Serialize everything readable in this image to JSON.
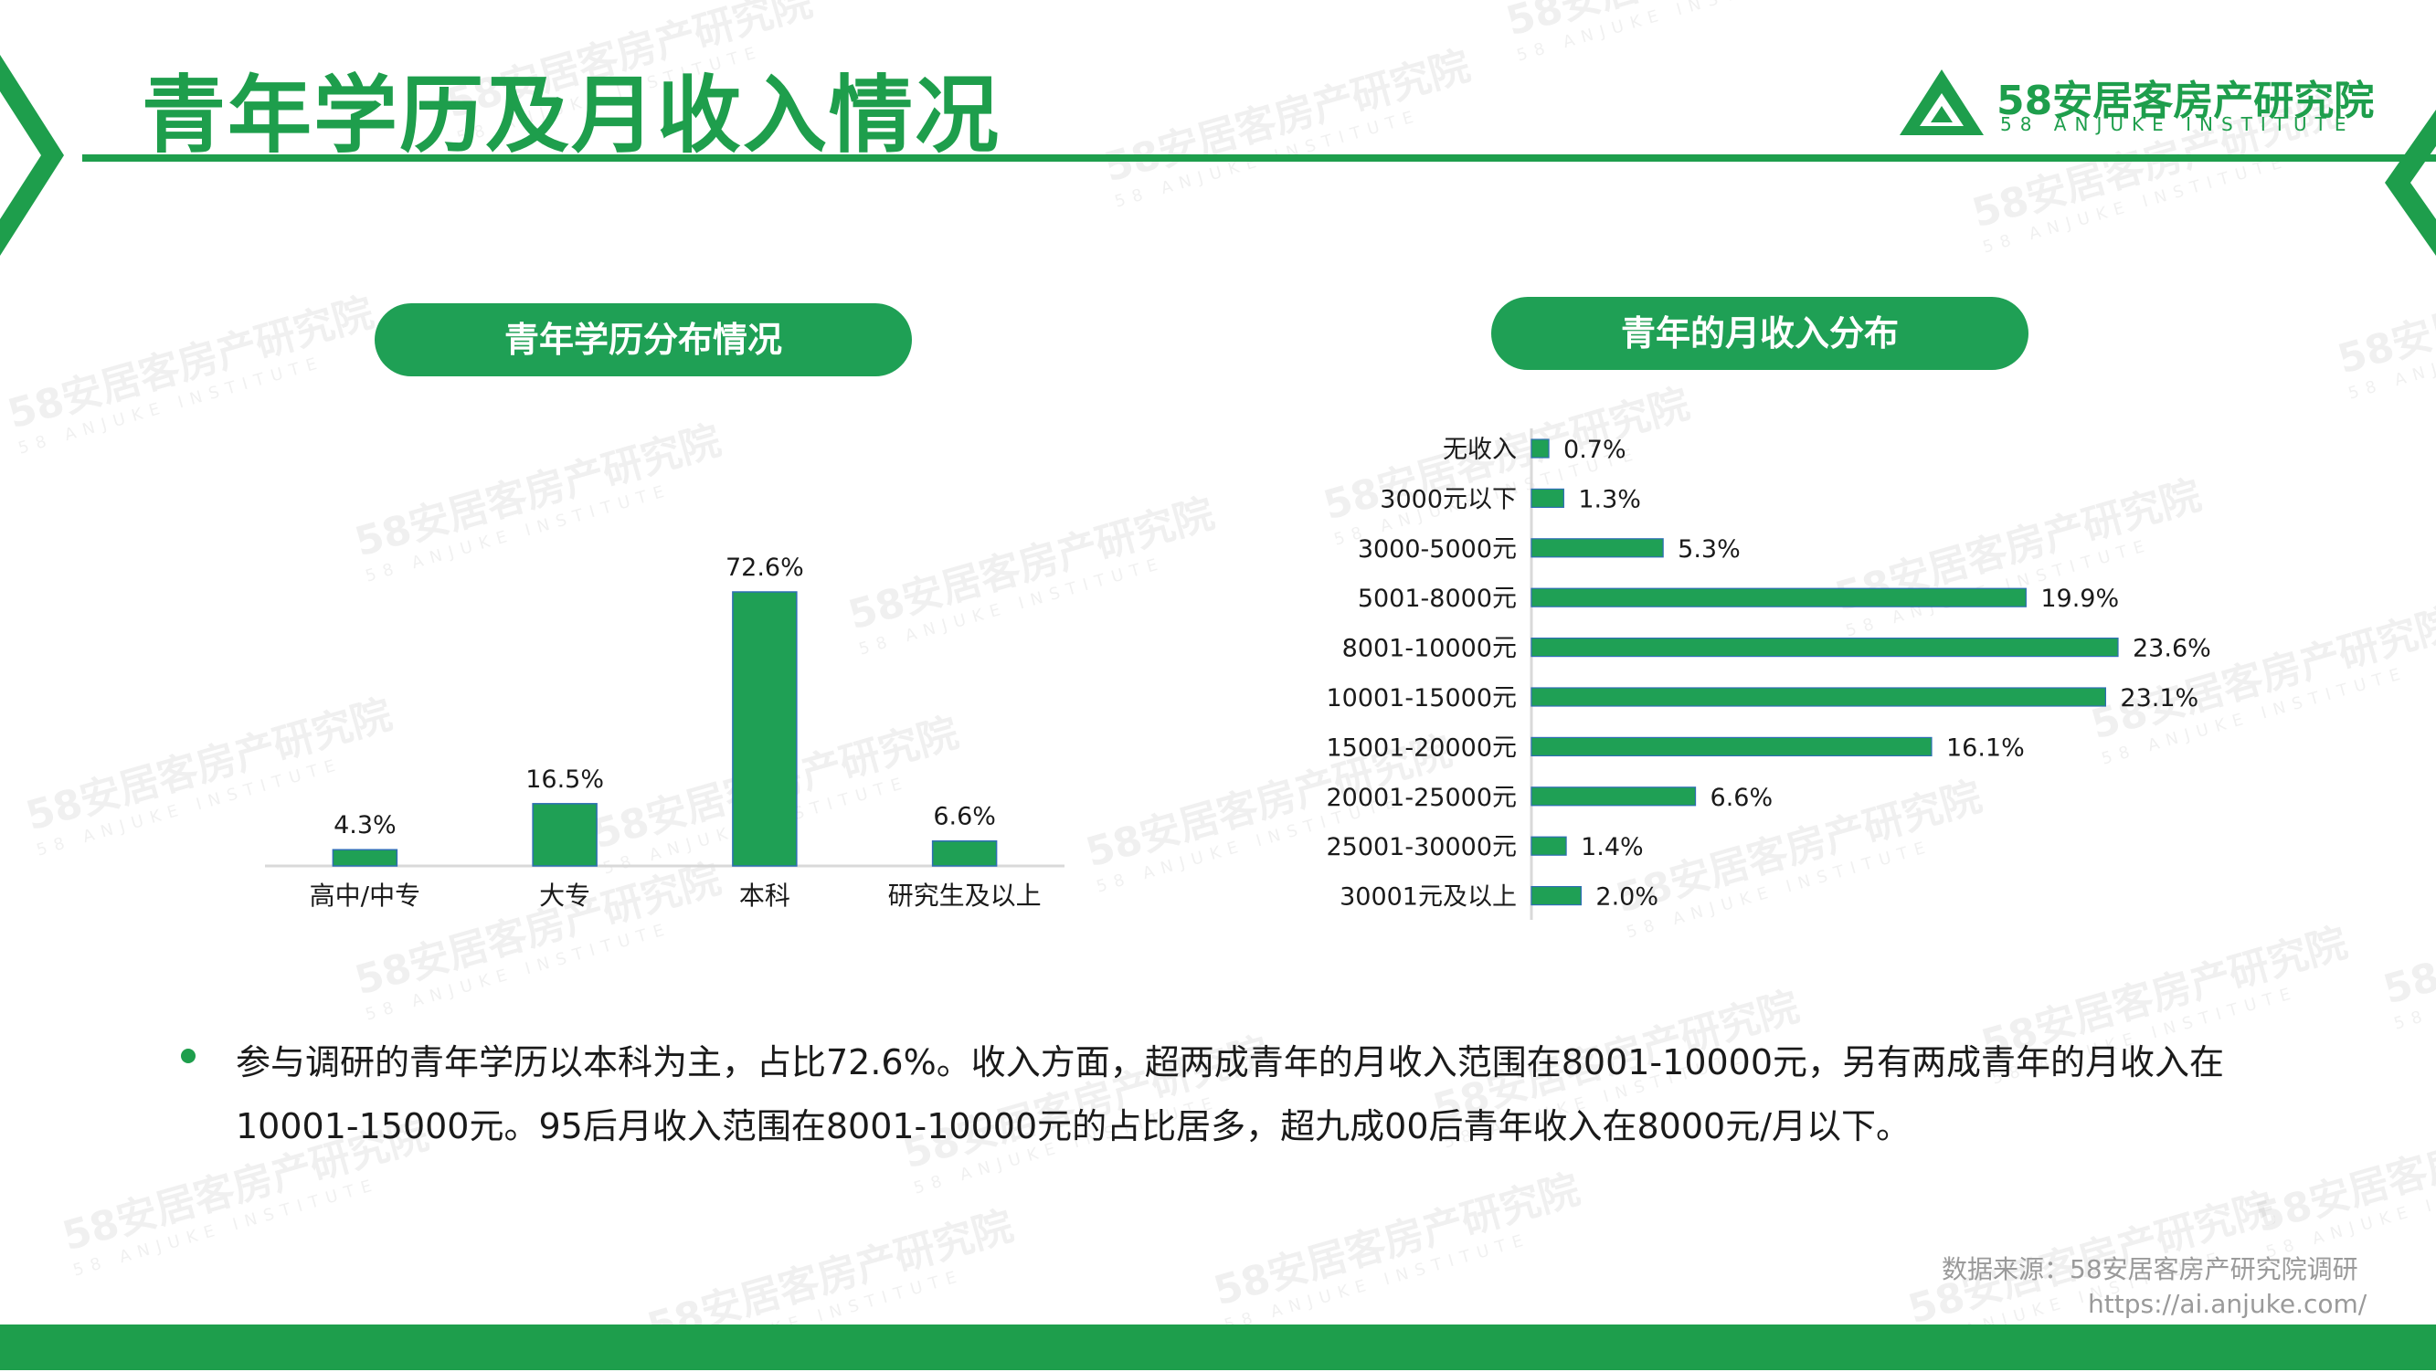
{
  "page": {
    "title": "青年学历及月收入情况"
  },
  "logo": {
    "name_cn": "58安居客房产研究院",
    "name_en": "58 ANJUKE INSTITUTE",
    "mark": "triangle-a-icon"
  },
  "watermark": {
    "name_cn": "58安居客房产研究院",
    "name_en": "58 ANJUKE INSTITUTE"
  },
  "colors": {
    "brand": "#1e9e4c",
    "bar": "#1fa055",
    "bar_edge": "#2e6eb5",
    "source_text": "#9a9a9a"
  },
  "summary": {
    "text": "参与调研的青年学历以本科为主，占比72.6%。收入方面，超两成青年的月收入范围在8001-10000元，另有两成青年的月收入在10001-15000元。95后月收入范围在8001-10000元的占比居多，超九成00后青年收入在8000元/月以下。"
  },
  "source": {
    "line1": "数据来源：58安居客房产研究院调研",
    "line2": "https://ai.anjuke.com/"
  },
  "chart_data": [
    {
      "type": "bar",
      "orientation": "vertical",
      "title": "青年学历分布情况",
      "categories": [
        "高中/中专",
        "大专",
        "本科",
        "研究生及以上"
      ],
      "values": [
        4.3,
        16.5,
        72.6,
        6.6
      ],
      "labels": [
        "4.3%",
        "16.5%",
        "72.6%",
        "6.6%"
      ],
      "unit": "%",
      "ylim": [
        0,
        80
      ],
      "grid": false,
      "legend": "none"
    },
    {
      "type": "bar",
      "orientation": "horizontal",
      "title": "青年的月收入分布",
      "categories": [
        "无收入",
        "3000元以下",
        "3000-5000元",
        "5001-8000元",
        "8001-10000元",
        "10001-15000元",
        "15001-20000元",
        "20001-25000元",
        "25001-30000元",
        "30001元及以上"
      ],
      "values": [
        0.7,
        1.3,
        5.3,
        19.9,
        23.6,
        23.1,
        16.1,
        6.6,
        1.4,
        2.0
      ],
      "labels": [
        "0.7%",
        "1.3%",
        "5.3%",
        "19.9%",
        "23.6%",
        "23.1%",
        "16.1%",
        "6.6%",
        "1.4%",
        "2.0%"
      ],
      "unit": "%",
      "xlim": [
        0,
        25
      ],
      "grid": false,
      "legend": "none"
    }
  ]
}
